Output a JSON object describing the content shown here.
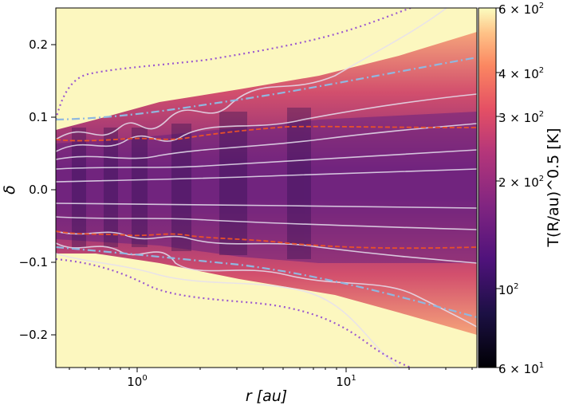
{
  "chart_data": {
    "type": "heatmap",
    "title": "",
    "xlabel": "r [au]",
    "ylabel": "δ",
    "xscale": "log",
    "xlim": [
      0.4,
      40
    ],
    "ylim": [
      -0.25,
      0.25
    ],
    "x_ticks": [
      {
        "value": 1,
        "label": "10",
        "exp": "0"
      },
      {
        "value": 10,
        "label": "10",
        "exp": "1"
      }
    ],
    "y_ticks": [
      {
        "value": -0.2,
        "label": "−0.2"
      },
      {
        "value": -0.1,
        "label": "−0.1"
      },
      {
        "value": 0.0,
        "label": "0.0"
      },
      {
        "value": 0.1,
        "label": "0.1"
      },
      {
        "value": 0.2,
        "label": "0.2"
      }
    ],
    "colorbar": {
      "label": "T(R/au)^0.5 [K]",
      "scale": "log",
      "range": [
        60,
        600
      ],
      "colormap": "magma",
      "ticks": [
        {
          "value": 600,
          "label": "6 × 10",
          "exp": "2"
        },
        {
          "value": 400,
          "label": "4 × 10",
          "exp": "2"
        },
        {
          "value": 300,
          "label": "3 × 10",
          "exp": "2"
        },
        {
          "value": 200,
          "label": "2 × 10",
          "exp": "2"
        },
        {
          "value": 100,
          "label": "10",
          "exp": "2"
        },
        {
          "value": 60,
          "label": "6 × 10",
          "exp": "1"
        }
      ]
    },
    "series": [
      {
        "name": "outer boundary (dotted)",
        "style": "dotted",
        "color": "#9b59d0",
        "x": [
          0.4,
          0.45,
          0.5,
          0.6,
          0.8,
          1,
          1.5,
          2,
          3,
          5,
          8,
          12,
          16
        ],
        "y": [
          0.06,
          0.12,
          0.15,
          0.16,
          0.163,
          0.165,
          0.17,
          0.18,
          0.19,
          0.205,
          0.225,
          0.242,
          0.25
        ]
      },
      {
        "name": "outer boundary lower (dotted)",
        "style": "dotted",
        "color": "#9b59d0",
        "x": [
          0.4,
          0.6,
          0.8,
          1,
          1.5,
          2,
          3,
          5,
          8,
          12,
          16,
          20
        ],
        "y": [
          -0.1,
          -0.102,
          -0.11,
          -0.12,
          -0.155,
          -0.165,
          -0.172,
          -0.178,
          -0.19,
          -0.22,
          -0.237,
          -0.25
        ]
      },
      {
        "name": "dash-dot upper",
        "style": "dashdot",
        "color": "#8fb8e0",
        "x": [
          0.4,
          1,
          2,
          5,
          10,
          20,
          40
        ],
        "y": [
          0.09,
          0.1,
          0.115,
          0.13,
          0.145,
          0.163,
          0.18
        ]
      },
      {
        "name": "dash-dot lower",
        "style": "dashdot",
        "color": "#8fb8e0",
        "x": [
          0.4,
          1,
          2,
          5,
          10,
          20,
          40
        ],
        "y": [
          -0.08,
          -0.095,
          -0.11,
          -0.125,
          -0.14,
          -0.158,
          -0.18
        ]
      },
      {
        "name": "dashed upper",
        "style": "dashed",
        "color": "#e8502a",
        "x": [
          0.4,
          0.6,
          1,
          1.5,
          2,
          3,
          5,
          10,
          20,
          40
        ],
        "y": [
          0.07,
          0.065,
          0.068,
          0.075,
          0.07,
          0.082,
          0.09,
          0.087,
          0.085,
          0.085
        ]
      },
      {
        "name": "dashed lower",
        "style": "dashed",
        "color": "#e8502a",
        "x": [
          0.4,
          0.6,
          1,
          1.5,
          2,
          3,
          5,
          10,
          20,
          40
        ],
        "y": [
          -0.058,
          -0.062,
          -0.063,
          -0.07,
          -0.062,
          -0.067,
          -0.077,
          -0.082,
          -0.078,
          -0.082
        ]
      }
    ]
  }
}
